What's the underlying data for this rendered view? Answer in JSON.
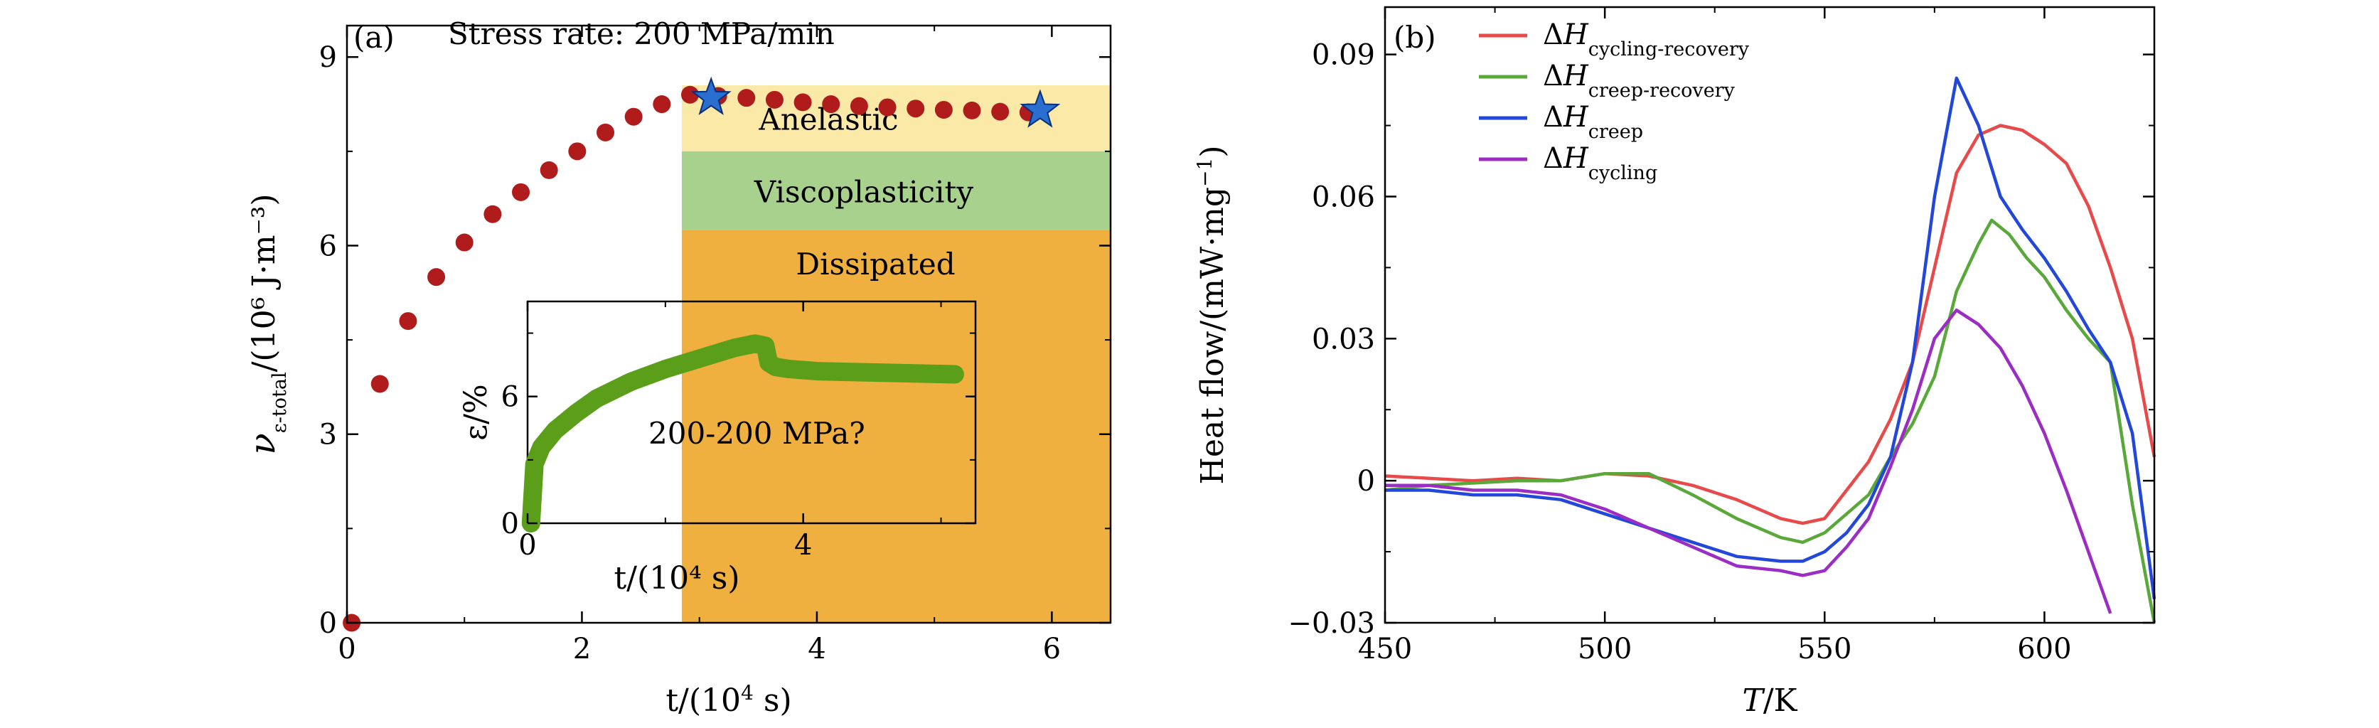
{
  "chart_data": [
    {
      "panel": "(a)",
      "type": "scatter",
      "title": "Stress rate: 200 MPa/min",
      "xlabel": "t/(10⁴ s)",
      "ylabel": "ν",
      "ylabel_sub": "ε-total",
      "ylabel_unit": "/(10⁶ J·m⁻³)",
      "xlim": [
        0,
        6.5
      ],
      "ylim": [
        0,
        9.5
      ],
      "xticks": [
        0,
        2,
        4,
        6
      ],
      "yticks": [
        0,
        3,
        6,
        9
      ],
      "series": [
        {
          "marker": "circle",
          "color": "#b01c1c",
          "x": [
            0.04,
            0.28,
            0.52,
            0.76,
            1.0,
            1.24,
            1.48,
            1.72,
            1.96,
            2.2,
            2.44,
            2.68,
            2.92,
            3.16,
            3.4,
            3.64,
            3.88,
            4.12,
            4.36,
            4.6,
            4.84,
            5.08,
            5.32,
            5.56,
            5.8
          ],
          "y": [
            0.0,
            3.8,
            4.8,
            5.5,
            6.05,
            6.5,
            6.85,
            7.2,
            7.5,
            7.8,
            8.05,
            8.25,
            8.4,
            8.38,
            8.35,
            8.32,
            8.28,
            8.25,
            8.22,
            8.2,
            8.18,
            8.16,
            8.15,
            8.13,
            8.12
          ]
        },
        {
          "marker": "star",
          "color": "#2a6fcf",
          "x": [
            3.1,
            5.9
          ],
          "y": [
            8.35,
            8.15
          ]
        }
      ],
      "regions": [
        {
          "label": "Anelastic",
          "x": [
            2.85,
            6.5
          ],
          "y": [
            7.5,
            8.55
          ],
          "color": "#fbe9a7"
        },
        {
          "label": "Viscoplasticity",
          "x": [
            2.85,
            6.5
          ],
          "y": [
            6.25,
            7.5
          ],
          "color": "#a9d18e"
        },
        {
          "label": "Dissipated",
          "x": [
            2.85,
            6.5
          ],
          "y": [
            0,
            6.25
          ],
          "color": "#f0b040"
        }
      ],
      "inset": {
        "type": "line",
        "annotation": "200-200 MPa?",
        "xlabel": "t/(10⁴ s)",
        "ylabel": "ε/%",
        "xlim": [
          0,
          6.5
        ],
        "ylim": [
          0,
          10.5
        ],
        "xticks": [
          0,
          4
        ],
        "yticks": [
          0,
          6
        ],
        "color": "#5a9e1a",
        "x": [
          0.05,
          0.1,
          0.2,
          0.4,
          0.7,
          1.0,
          1.5,
          2.0,
          2.5,
          3.0,
          3.3,
          3.45,
          3.5,
          3.6,
          3.8,
          4.2,
          4.8,
          5.5,
          6.2
        ],
        "y": [
          0.0,
          2.8,
          3.6,
          4.4,
          5.2,
          5.9,
          6.7,
          7.3,
          7.8,
          8.3,
          8.5,
          8.4,
          7.6,
          7.4,
          7.3,
          7.2,
          7.15,
          7.1,
          7.05
        ]
      }
    },
    {
      "panel": "(b)",
      "type": "line",
      "xlabel": "T/K",
      "ylabel": "Heat flow/(mW·mg⁻¹)",
      "xlim": [
        450,
        625
      ],
      "ylim": [
        -0.03,
        0.1
      ],
      "xticks": [
        450,
        500,
        550,
        600
      ],
      "yticks": [
        -0.03,
        0,
        0.03,
        0.06,
        0.09
      ],
      "ytick_labels": [
        "−0.03",
        "0",
        "0.03",
        "0.06",
        "0.09"
      ],
      "legend_position": "top-left",
      "series": [
        {
          "name": "ΔH",
          "subscript": "cycling-recovery",
          "color": "#e84a4a",
          "x": [
            450,
            460,
            470,
            480,
            490,
            500,
            510,
            520,
            530,
            540,
            545,
            550,
            555,
            560,
            565,
            570,
            575,
            580,
            585,
            590,
            595,
            600,
            605,
            610,
            615,
            620,
            625
          ],
          "y": [
            0.001,
            0.0005,
            0.0,
            0.0005,
            0.0,
            0.0015,
            0.001,
            -0.001,
            -0.004,
            -0.008,
            -0.009,
            -0.008,
            -0.002,
            0.004,
            0.013,
            0.025,
            0.045,
            0.065,
            0.073,
            0.075,
            0.074,
            0.071,
            0.067,
            0.058,
            0.045,
            0.03,
            0.005
          ]
        },
        {
          "name": "ΔH",
          "subscript": "creep-recovery",
          "color": "#5aa83a",
          "x": [
            450,
            460,
            470,
            480,
            490,
            500,
            510,
            520,
            530,
            540,
            545,
            550,
            555,
            560,
            565,
            570,
            575,
            580,
            585,
            588,
            592,
            596,
            600,
            605,
            610,
            615,
            620,
            625
          ],
          "y": [
            -0.002,
            -0.001,
            -0.0005,
            0.0,
            0.0,
            0.0015,
            0.0015,
            -0.003,
            -0.008,
            -0.012,
            -0.013,
            -0.011,
            -0.007,
            -0.003,
            0.005,
            0.012,
            0.022,
            0.04,
            0.05,
            0.055,
            0.052,
            0.047,
            0.043,
            0.036,
            0.03,
            0.025,
            -0.005,
            -0.03
          ]
        },
        {
          "name": "ΔH",
          "subscript": "creep",
          "color": "#2347d8",
          "x": [
            450,
            460,
            470,
            480,
            490,
            500,
            510,
            520,
            530,
            540,
            545,
            550,
            555,
            560,
            565,
            570,
            575,
            580,
            585,
            590,
            595,
            600,
            605,
            610,
            615,
            620,
            625
          ],
          "y": [
            -0.002,
            -0.002,
            -0.003,
            -0.003,
            -0.004,
            -0.007,
            -0.01,
            -0.013,
            -0.016,
            -0.017,
            -0.017,
            -0.015,
            -0.011,
            -0.005,
            0.005,
            0.025,
            0.06,
            0.085,
            0.075,
            0.06,
            0.053,
            0.047,
            0.04,
            0.032,
            0.025,
            0.01,
            -0.025
          ]
        },
        {
          "name": "ΔH",
          "subscript": "cycling",
          "color": "#9b2dc4",
          "x": [
            450,
            460,
            470,
            480,
            490,
            500,
            510,
            520,
            530,
            540,
            545,
            550,
            555,
            560,
            565,
            570,
            575,
            580,
            585,
            590,
            595,
            600,
            605,
            610,
            615
          ],
          "y": [
            -0.001,
            -0.001,
            -0.002,
            -0.002,
            -0.003,
            -0.006,
            -0.01,
            -0.014,
            -0.018,
            -0.019,
            -0.02,
            -0.019,
            -0.014,
            -0.008,
            0.003,
            0.015,
            0.03,
            0.036,
            0.033,
            0.028,
            0.02,
            0.01,
            -0.002,
            -0.015,
            -0.028
          ]
        }
      ]
    }
  ]
}
